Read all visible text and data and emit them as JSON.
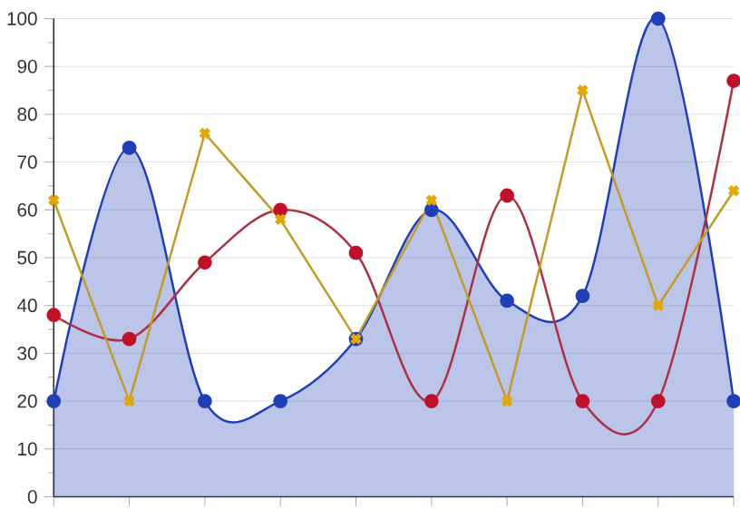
{
  "chart_data": {
    "type": "line",
    "categories": [
      null,
      null,
      null,
      null,
      null,
      null,
      null,
      null,
      null,
      null
    ],
    "ylim": [
      0,
      100
    ],
    "yticks": [
      0,
      10,
      20,
      30,
      40,
      50,
      60,
      70,
      80,
      90,
      100
    ],
    "grid": "y",
    "tick_labels": "y",
    "series": [
      {
        "type": "area",
        "color": "#1f3fb8",
        "marker": "circle",
        "values": [
          20,
          73,
          20,
          20,
          33,
          60,
          41,
          42,
          100,
          20
        ]
      },
      {
        "color": "#c0102a",
        "marker": "circle",
        "values": [
          38,
          33,
          49,
          60,
          51,
          20,
          63,
          20,
          20,
          87
        ]
      },
      {
        "color": "#e0a800",
        "marker": "cross",
        "line_style": "solid",
        "values": [
          62,
          20,
          76,
          58,
          33,
          62,
          20,
          85,
          40,
          64
        ]
      }
    ]
  }
}
